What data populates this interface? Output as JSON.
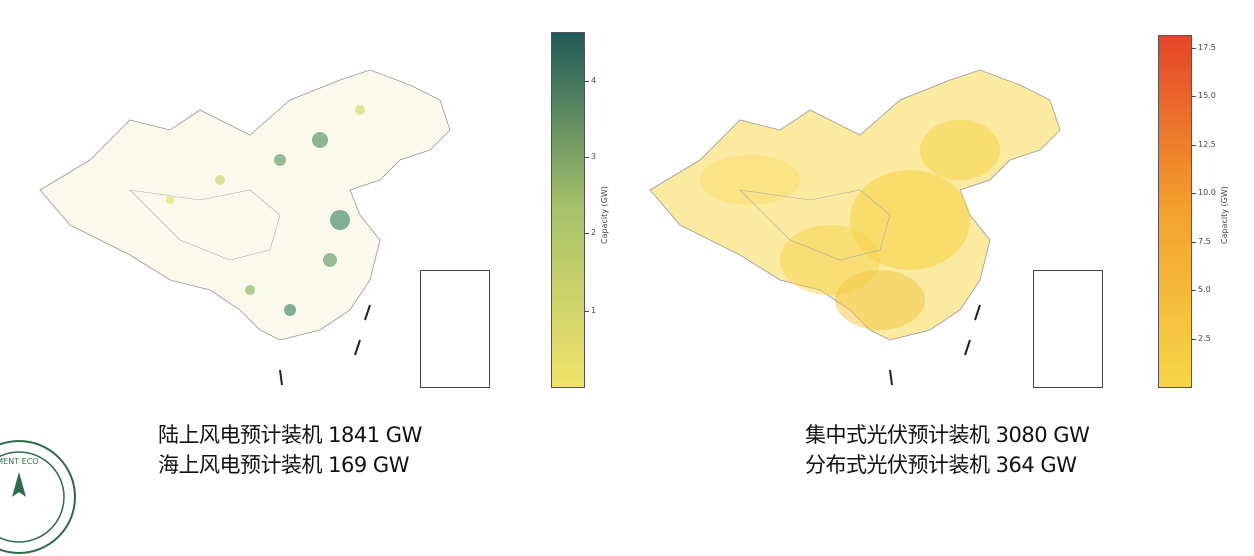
{
  "left_panel": {
    "colorbar": {
      "label": "Capacity (GW)",
      "ticks": [
        "1",
        "2",
        "3",
        "4"
      ],
      "color_low": "#f2e36a",
      "color_mid": "#a7c26a",
      "color_high": "#1f5a5a"
    },
    "caption": {
      "line1": "陆上风电预计装机 1841 GW",
      "line2": "海上风电预计装机 169 GW"
    }
  },
  "right_panel": {
    "colorbar": {
      "label": "Capacity (GW)",
      "ticks": [
        "2.5",
        "5.0",
        "7.5",
        "10.0",
        "12.5",
        "15.0",
        "17.5"
      ],
      "color_low": "#f7d64a",
      "color_mid": "#f4a12d",
      "color_high": "#e4452a"
    },
    "caption": {
      "line1": "集中式光伏预计装机 3080 GW",
      "line2": "分布式光伏预计装机 364 GW"
    }
  },
  "logo": {
    "text": "ONMENT ECO",
    "color": "#2f6b4a"
  }
}
